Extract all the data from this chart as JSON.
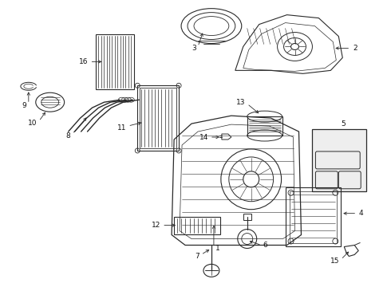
{
  "background_color": "#ffffff",
  "line_color": "#2a2a2a",
  "label_color": "#111111",
  "fig_width": 4.9,
  "fig_height": 3.6,
  "dpi": 100,
  "lw": 0.7,
  "fontsize": 6.5
}
